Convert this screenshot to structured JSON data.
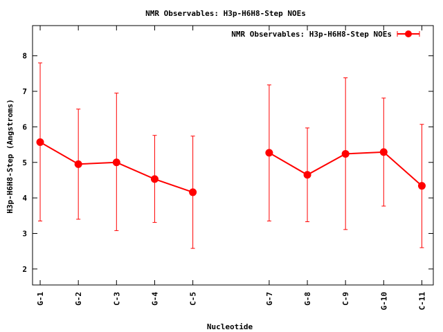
{
  "chart_data": {
    "type": "line",
    "title": "NMR Observables: H3p-H6H8-Step NOEs",
    "xlabel": "Nucleotide",
    "ylabel": "H3p-H6H8-Step (Angstroms)",
    "ylim": [
      1.55,
      8.85
    ],
    "yticks": [
      2,
      3,
      4,
      5,
      6,
      7,
      8
    ],
    "xlim": [
      0.8,
      11.3
    ],
    "grid": false,
    "legend_position": "top-right",
    "categories": [
      "G-1",
      "G-2",
      "C-3",
      "G-4",
      "C-5",
      "G-7",
      "G-8",
      "C-9",
      "G-10",
      "C-11"
    ],
    "x": [
      1,
      2,
      3,
      4,
      5,
      7,
      8,
      9,
      10,
      11
    ],
    "series": [
      {
        "name": "NMR Observables: H3p-H6H8-Step NOEs",
        "color": "#ff0000",
        "values": [
          5.57,
          4.95,
          5.0,
          4.53,
          4.16,
          5.27,
          4.65,
          5.24,
          5.29,
          4.34
        ],
        "err_low": [
          3.35,
          3.4,
          3.08,
          3.31,
          2.58,
          3.35,
          3.33,
          3.11,
          3.77,
          2.6
        ],
        "err_high": [
          7.8,
          6.5,
          6.95,
          5.76,
          5.74,
          7.18,
          5.97,
          7.38,
          6.81,
          6.07
        ],
        "segments": [
          [
            0,
            4
          ],
          [
            5,
            9
          ]
        ]
      }
    ]
  }
}
